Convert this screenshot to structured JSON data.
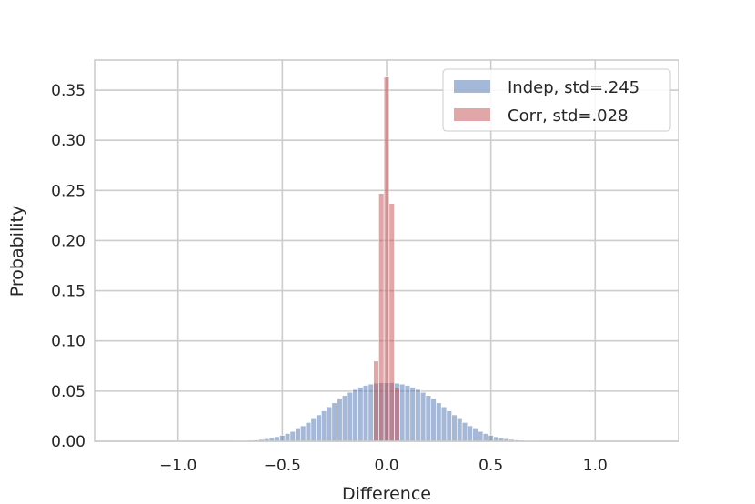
{
  "chart_data": {
    "type": "bar",
    "xlabel": "Difference",
    "ylabel": "Probability",
    "xlim": [
      -1.4,
      1.4
    ],
    "ylim": [
      0,
      0.38
    ],
    "grid": true,
    "legend_position": "top-right",
    "xticks": [
      {
        "value": -1.0,
        "label": "−1.0"
      },
      {
        "value": -0.5,
        "label": "−0.5"
      },
      {
        "value": 0.0,
        "label": "0.0"
      },
      {
        "value": 0.5,
        "label": "0.5"
      },
      {
        "value": 1.0,
        "label": "1.0"
      }
    ],
    "yticks": [
      {
        "value": 0.0,
        "label": "0.00"
      },
      {
        "value": 0.05,
        "label": "0.05"
      },
      {
        "value": 0.1,
        "label": "0.10"
      },
      {
        "value": 0.15,
        "label": "0.15"
      },
      {
        "value": 0.2,
        "label": "0.20"
      },
      {
        "value": 0.25,
        "label": "0.25"
      },
      {
        "value": 0.3,
        "label": "0.30"
      },
      {
        "value": 0.35,
        "label": "0.35"
      }
    ],
    "series": [
      {
        "name": "Indep, std=.245",
        "color": "#4c72b0",
        "opacity": 0.5,
        "bin_width": 0.025,
        "x": [
          -1.0,
          -0.975,
          -0.95,
          -0.925,
          -0.9,
          -0.875,
          -0.85,
          -0.825,
          -0.8,
          -0.775,
          -0.75,
          -0.725,
          -0.7,
          -0.675,
          -0.65,
          -0.625,
          -0.6,
          -0.575,
          -0.55,
          -0.525,
          -0.5,
          -0.475,
          -0.45,
          -0.425,
          -0.4,
          -0.375,
          -0.35,
          -0.325,
          -0.3,
          -0.275,
          -0.25,
          -0.225,
          -0.2,
          -0.175,
          -0.15,
          -0.125,
          -0.1,
          -0.075,
          -0.05,
          -0.025,
          0.0,
          0.025,
          0.05,
          0.075,
          0.1,
          0.125,
          0.15,
          0.175,
          0.2,
          0.225,
          0.25,
          0.275,
          0.3,
          0.325,
          0.35,
          0.375,
          0.4,
          0.425,
          0.45,
          0.475,
          0.5,
          0.525,
          0.55,
          0.575,
          0.6,
          0.625,
          0.65,
          0.675,
          0.7,
          0.725,
          0.75,
          0.775,
          0.8,
          0.825,
          0.85,
          0.875,
          0.9,
          0.925,
          0.95,
          0.975,
          1.0
        ],
        "values": [
          0.0003,
          0.0003,
          0.0003,
          0.0003,
          0.0003,
          0.0003,
          0.0003,
          0.0003,
          0.0003,
          0.0003,
          0.0003,
          0.0004,
          0.0005,
          0.0007,
          0.001,
          0.0013,
          0.0018,
          0.0025,
          0.0034,
          0.0045,
          0.0059,
          0.0077,
          0.0098,
          0.0124,
          0.0154,
          0.0187,
          0.0224,
          0.0263,
          0.0303,
          0.0343,
          0.0383,
          0.0421,
          0.0456,
          0.0488,
          0.0516,
          0.0539,
          0.0557,
          0.057,
          0.0579,
          0.0584,
          0.0585,
          0.0584,
          0.0579,
          0.057,
          0.0557,
          0.0539,
          0.0516,
          0.0488,
          0.0456,
          0.0421,
          0.0383,
          0.0343,
          0.0303,
          0.0263,
          0.0224,
          0.0187,
          0.0154,
          0.0124,
          0.0098,
          0.0077,
          0.0059,
          0.0045,
          0.0034,
          0.0025,
          0.0018,
          0.0013,
          0.001,
          0.0007,
          0.0005,
          0.0004,
          0.0003,
          0.0003,
          0.0003,
          0.0003,
          0.0003,
          0.0003,
          0.0003,
          0.0003,
          0.0003,
          0.0003,
          0.0003
        ]
      },
      {
        "name": "Corr, std=.028",
        "color": "#c44e52",
        "opacity": 0.5,
        "bin_width": 0.025,
        "x": [
          -0.05,
          -0.025,
          0.0,
          0.025,
          0.05
        ],
        "values": [
          0.08,
          0.247,
          0.363,
          0.237,
          0.053
        ]
      }
    ]
  }
}
